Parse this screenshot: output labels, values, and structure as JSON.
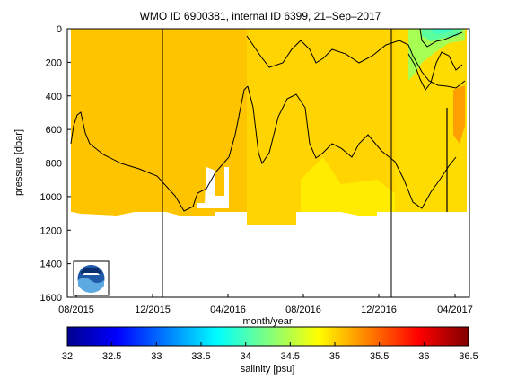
{
  "chart_data": {
    "type": "heatmap",
    "title": "WMO ID 6900381, internal ID 6399, 21–Sep–2017",
    "xlabel": "month/year",
    "ylabel": "pressure [dbar]",
    "x_tick_labels": [
      "08/2015",
      "12/2015",
      "04/2016",
      "08/2016",
      "12/2016",
      "04/2017"
    ],
    "y_tick_labels": [
      "0",
      "200",
      "400",
      "600",
      "800",
      "1000",
      "1200",
      "1400",
      "1600"
    ],
    "y_ticks": [
      0,
      200,
      400,
      600,
      800,
      1000,
      1200,
      1400,
      1600
    ],
    "ylim": [
      0,
      1600
    ],
    "y_reversed": true,
    "grid": false,
    "colorbar": {
      "label": "salinity [psu]",
      "ticks": [
        32,
        32.5,
        33,
        33.5,
        34,
        34.5,
        35,
        35.5,
        36,
        36.5
      ],
      "tick_labels": [
        "32",
        "32.5",
        "33",
        "33.5",
        "34",
        "34.5",
        "35",
        "35.5",
        "36",
        "36.5"
      ],
      "range": [
        32,
        36.5
      ],
      "colormap": "jet"
    },
    "regions": [
      {
        "period": "08/2015–03/2016",
        "pressure_range": [
          0,
          1090
        ],
        "salinity": 35.3
      },
      {
        "period": "04/2016–08/2016",
        "pressure_range": [
          0,
          1100
        ],
        "salinity": 35.1
      },
      {
        "period": "09/2016–03/2017",
        "pressure_range": [
          100,
          1090
        ],
        "salinity": 35.0
      },
      {
        "period": "11/2016–03/2017",
        "pressure_range": [
          0,
          100
        ],
        "salinity": 34.4
      },
      {
        "period": "03/2017–04/2017",
        "pressure_range": [
          300,
          800
        ],
        "salinity": 35.5
      }
    ],
    "contour_levels": [
      35,
      35.2
    ],
    "vertical_markers": [
      "12/2015",
      "12/2016"
    ]
  },
  "logo": {
    "name": "noaa-logo-icon"
  }
}
